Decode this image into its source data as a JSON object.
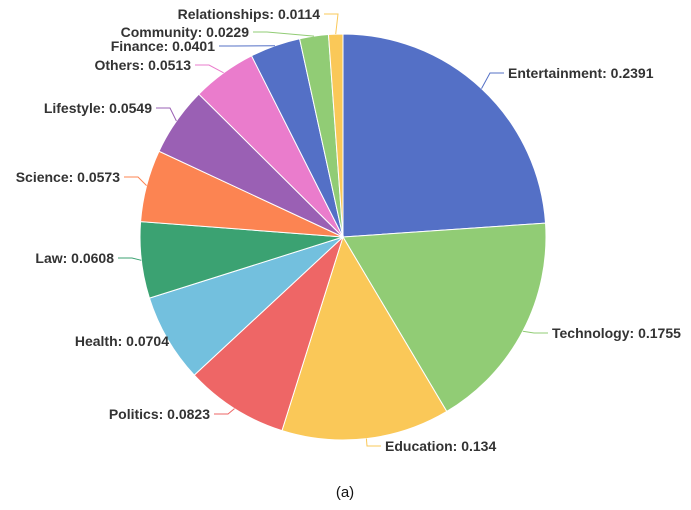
{
  "chart_data": {
    "type": "pie",
    "caption": "(a)",
    "slices": [
      {
        "label": "Entertainment",
        "value": 0.2391,
        "color": "#5470c6"
      },
      {
        "label": "Technology",
        "value": 0.1755,
        "color": "#91cc75"
      },
      {
        "label": "Education",
        "value": 0.134,
        "color": "#fac858"
      },
      {
        "label": "Politics",
        "value": 0.0823,
        "color": "#ee6666"
      },
      {
        "label": "Health",
        "value": 0.0704,
        "color": "#73c0de"
      },
      {
        "label": "Law",
        "value": 0.0608,
        "color": "#3ba272"
      },
      {
        "label": "Science",
        "value": 0.0573,
        "color": "#fc8452"
      },
      {
        "label": "Lifestyle",
        "value": 0.0549,
        "color": "#9a60b4"
      },
      {
        "label": "Others",
        "value": 0.0513,
        "color": "#ea7ccc"
      },
      {
        "label": "Finance",
        "value": 0.0401,
        "color": "#5470c6"
      },
      {
        "label": "Community",
        "value": 0.0229,
        "color": "#91cc75"
      },
      {
        "label": "Relationships",
        "value": 0.0114,
        "color": "#fac858"
      }
    ]
  }
}
